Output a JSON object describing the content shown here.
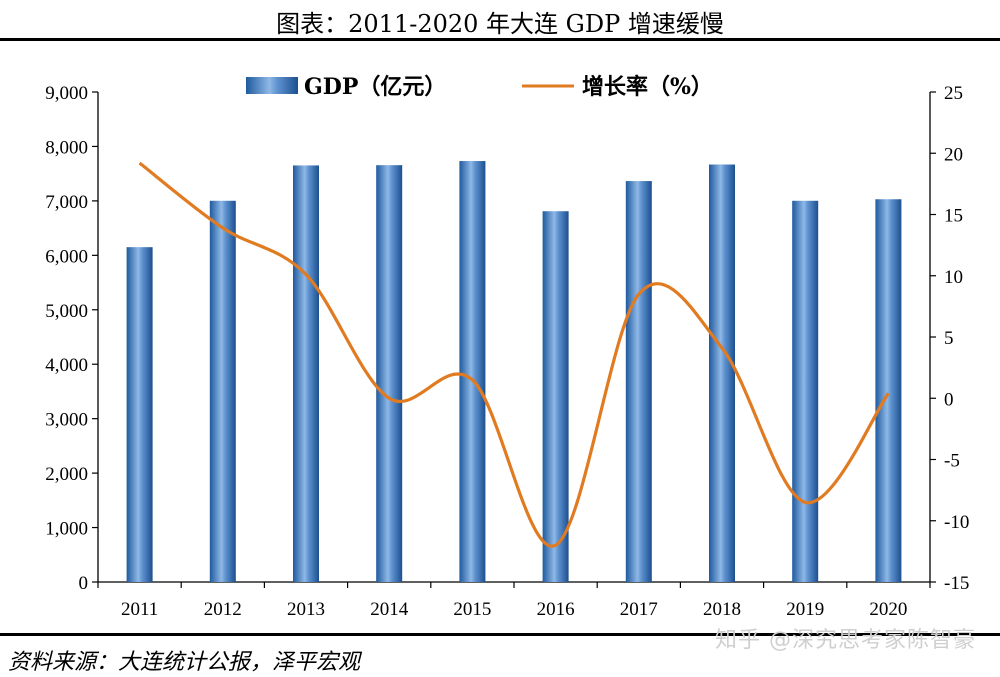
{
  "title": "图表：2011-2020 年大连 GDP 增速缓慢",
  "source": "资料来源：大连统计公报，泽平宏观",
  "watermark": "知乎 @深究思考家陈智豪",
  "colors": {
    "bar": "#2f6db3",
    "line": "#e07b22",
    "rule": "#000000"
  },
  "chart_data": {
    "type": "bar",
    "categories": [
      "2011",
      "2012",
      "2013",
      "2014",
      "2015",
      "2016",
      "2017",
      "2018",
      "2019",
      "2020"
    ],
    "series": [
      {
        "name": "GDP（亿元）",
        "type": "bar",
        "axis": "left",
        "values": [
          6150,
          7002,
          7651,
          7656,
          7732,
          6810,
          7364,
          7668,
          7002,
          7030
        ]
      },
      {
        "name": "增长率（%）",
        "type": "line",
        "axis": "right",
        "values": [
          19.2,
          13.9,
          10.1,
          0.0,
          1.5,
          -12.0,
          8.5,
          4.1,
          -8.5,
          0.4
        ]
      }
    ],
    "y_left": {
      "ylim": [
        0,
        9000
      ],
      "ticks": [
        "0",
        "1,000",
        "2,000",
        "3,000",
        "4,000",
        "5,000",
        "6,000",
        "7,000",
        "8,000",
        "9,000"
      ]
    },
    "y_right": {
      "ylim": [
        -15,
        25
      ],
      "ticks": [
        "-15",
        "-10",
        "-5",
        "0",
        "5",
        "10",
        "15",
        "20",
        "25"
      ]
    },
    "legend": {
      "position": "top",
      "entries": [
        "GDP（亿元）",
        "增长率（%）"
      ]
    },
    "grid": false
  }
}
